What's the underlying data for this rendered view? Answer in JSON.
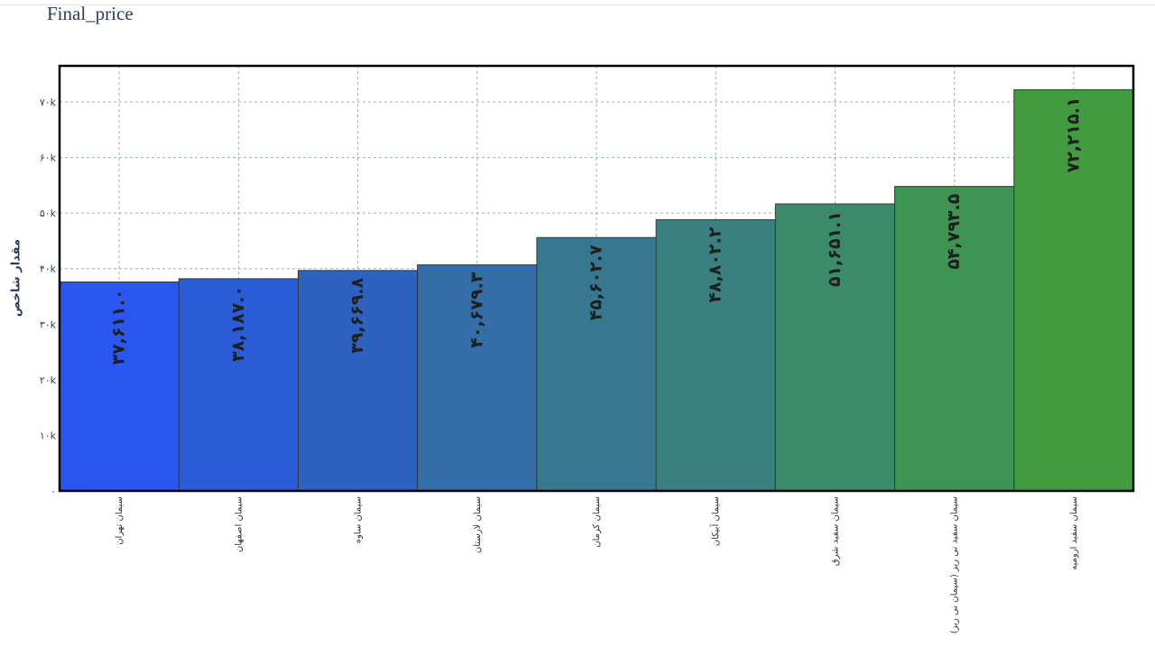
{
  "chart_data": {
    "type": "bar",
    "title": "Final_price",
    "ylabel": "مقدار شاخص",
    "xlabel": "",
    "ylim": [
      0,
      76500
    ],
    "yticks": [
      {
        "value": 0,
        "label": "۰"
      },
      {
        "value": 10000,
        "label": "۱۰k"
      },
      {
        "value": 20000,
        "label": "۲۰k"
      },
      {
        "value": 30000,
        "label": "۳۰k"
      },
      {
        "value": 40000,
        "label": "۴۰k"
      },
      {
        "value": 50000,
        "label": "۵۰k"
      },
      {
        "value": 60000,
        "label": "۶۰k"
      },
      {
        "value": 70000,
        "label": "۷۰k"
      }
    ],
    "grid": true,
    "categories": [
      "سیمان تهران",
      "سیمان اصفهان",
      "سیمان ساوه",
      "سیمان لارستان",
      "سیمان کرمان",
      "سیمان آبیکان",
      "سیمان سفید شرق",
      "سیمان سفید نی ریز (سیمان نی ریز)",
      "سیمان سفید ارومیه"
    ],
    "values": [
      37611.0,
      38187.0,
      39669.8,
      40679.3,
      45602.7,
      48802.2,
      51651.1,
      54793.5,
      72215.1
    ],
    "data_labels": [
      "۳۷,۶۱۱.۰",
      "۳۸,۱۸۷.۰",
      "۳۹,۶۶۹.۸",
      "۴۰,۶۷۹.۳",
      "۴۵,۶۰۲.۷",
      "۴۸,۸۰۲.۲",
      "۵۱,۶۵۱.۱",
      "۵۴,۷۹۳.۵",
      "۷۲,۲۱۵.۱"
    ],
    "colors": [
      "#2a57f0",
      "#2b5cd8",
      "#2e62c0",
      "#336ea8",
      "#377890",
      "#3a8080",
      "#3b8a6a",
      "#3e9452",
      "#439b40"
    ]
  }
}
